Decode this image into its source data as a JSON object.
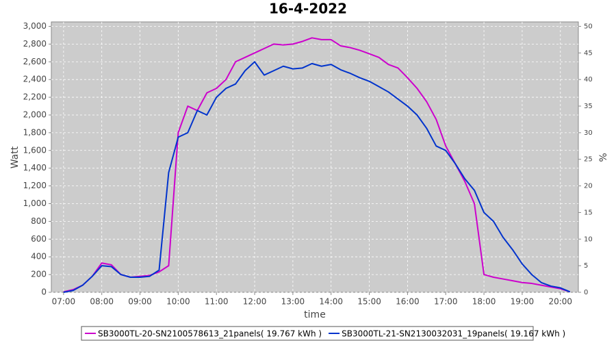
{
  "chart_data": {
    "type": "line",
    "title": "16-4-2022",
    "x_label": "time",
    "y_label": "Watt",
    "y2_label": "%",
    "x": [
      7,
      7.25,
      7.5,
      7.75,
      8,
      8.25,
      8.5,
      8.75,
      9,
      9.25,
      9.5,
      9.75,
      10,
      10.25,
      10.5,
      10.75,
      11,
      11.25,
      11.5,
      11.75,
      12,
      12.25,
      12.5,
      12.75,
      13,
      13.25,
      13.5,
      13.75,
      14,
      14.25,
      14.5,
      14.75,
      15,
      15.25,
      15.5,
      15.75,
      16,
      16.25,
      16.5,
      16.75,
      17,
      17.25,
      17.5,
      17.75,
      18,
      18.25,
      18.5,
      18.75,
      19,
      19.25,
      19.5,
      19.75,
      20,
      20.25
    ],
    "series": [
      {
        "name": "SB3000TL-20-SN2100578613_21panels( 19.767 kWh )",
        "color": "#cc00cc",
        "values": [
          5,
          30,
          80,
          180,
          330,
          310,
          200,
          170,
          180,
          190,
          230,
          300,
          1800,
          2100,
          2050,
          2250,
          2300,
          2400,
          2600,
          2650,
          2700,
          2750,
          2800,
          2790,
          2800,
          2830,
          2870,
          2850,
          2850,
          2780,
          2760,
          2730,
          2690,
          2650,
          2570,
          2530,
          2420,
          2300,
          2150,
          1950,
          1650,
          1450,
          1250,
          1000,
          200,
          170,
          150,
          130,
          110,
          100,
          80,
          60,
          40,
          5
        ]
      },
      {
        "name": "SB3000TL-21-SN2130032031_19panels( 19.167 kWh )",
        "color": "#0033cc",
        "values": [
          0,
          20,
          80,
          180,
          300,
          290,
          200,
          170,
          170,
          180,
          250,
          1350,
          1750,
          1800,
          2050,
          2000,
          2200,
          2300,
          2350,
          2500,
          2600,
          2450,
          2500,
          2550,
          2520,
          2530,
          2580,
          2550,
          2570,
          2510,
          2470,
          2420,
          2380,
          2320,
          2260,
          2180,
          2100,
          2000,
          1850,
          1650,
          1600,
          1450,
          1280,
          1150,
          900,
          800,
          620,
          480,
          320,
          200,
          110,
          70,
          50,
          5
        ]
      }
    ],
    "xlim": [
      6.68,
      20.47
    ],
    "xticks": [
      {
        "value": 7,
        "label": "07:00"
      },
      {
        "value": 8,
        "label": "08:00"
      },
      {
        "value": 9,
        "label": "09:00"
      },
      {
        "value": 10,
        "label": "10:00"
      },
      {
        "value": 11,
        "label": "11:00"
      },
      {
        "value": 12,
        "label": "12:00"
      },
      {
        "value": 13,
        "label": "13:00"
      },
      {
        "value": 14,
        "label": "14:00"
      },
      {
        "value": 15,
        "label": "15:00"
      },
      {
        "value": 16,
        "label": "16:00"
      },
      {
        "value": 17,
        "label": "17:00"
      },
      {
        "value": 18,
        "label": "18:00"
      },
      {
        "value": 19,
        "label": "19:00"
      },
      {
        "value": 20,
        "label": "20:00"
      }
    ],
    "ylim": [
      0,
      3050
    ],
    "yticks": [
      0,
      200,
      400,
      600,
      800,
      {
        "value": 1000,
        "label": "1,000"
      },
      {
        "value": 1200,
        "label": "1,200"
      },
      {
        "value": 1400,
        "label": "1,400"
      },
      {
        "value": 1600,
        "label": "1,600"
      },
      {
        "value": 1800,
        "label": "1,800"
      },
      {
        "value": 2000,
        "label": "2,000"
      },
      {
        "value": 2200,
        "label": "2,200"
      },
      {
        "value": 2400,
        "label": "2,400"
      },
      {
        "value": 2600,
        "label": "2,600"
      },
      {
        "value": 2800,
        "label": "2,800"
      },
      {
        "value": 3000,
        "label": "3,000"
      }
    ],
    "y2lim": [
      0,
      50.83
    ],
    "y2ticks": [
      0,
      5,
      10,
      15,
      20,
      25,
      30,
      35,
      40,
      45,
      50
    ],
    "grid": true,
    "legend": "bottom"
  }
}
